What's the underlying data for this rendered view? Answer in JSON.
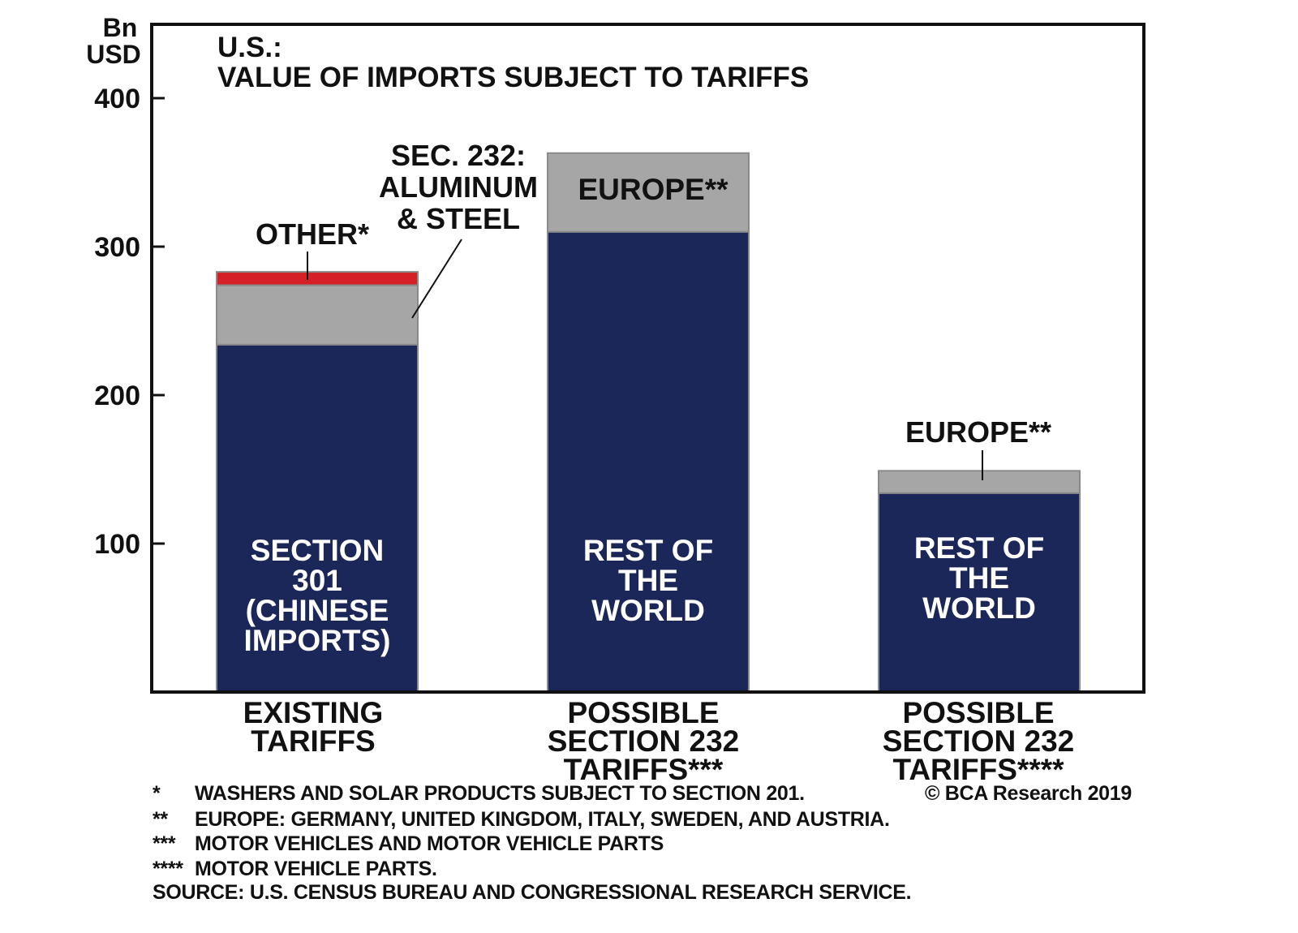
{
  "chart_data": {
    "type": "bar",
    "stacked": true,
    "title": "U.S.:",
    "subtitle": "VALUE OF IMPORTS SUBJECT TO TARIFFS",
    "ylabel": [
      "Bn",
      "USD"
    ],
    "ylim": [
      0,
      450
    ],
    "yticks": [
      "100",
      "200",
      "300",
      "400"
    ],
    "ytick_values": [
      100,
      200,
      300,
      400
    ],
    "grid": false,
    "categories": [
      [
        "EXISTING",
        "TARIFFS"
      ],
      [
        "POSSIBLE",
        "SECTION 232",
        "TARIFFS***"
      ],
      [
        "POSSIBLE",
        "SECTION 232",
        "TARIFFS****"
      ]
    ],
    "bars": [
      {
        "segments": [
          {
            "label": [
              "SECTION",
              "301",
              "(CHINESE",
              "IMPORTS)"
            ],
            "value": 234,
            "color": "#1c2759",
            "label_position": "inside"
          },
          {
            "label": [
              "SEC. 232:",
              "ALUMINUM",
              "& STEEL"
            ],
            "value": 40,
            "color": "#a6a6a6",
            "label_position": "callout"
          },
          {
            "label": [
              "OTHER*"
            ],
            "value": 9,
            "color": "#d42026",
            "label_position": "callout"
          }
        ]
      },
      {
        "segments": [
          {
            "label": [
              "REST OF",
              "THE",
              "WORLD"
            ],
            "value": 310,
            "color": "#1c2759",
            "label_position": "inside"
          },
          {
            "label": [
              "EUROPE**"
            ],
            "value": 53,
            "color": "#a6a6a6",
            "label_position": "inside"
          }
        ]
      },
      {
        "segments": [
          {
            "label": [
              "REST OF",
              "THE",
              "WORLD"
            ],
            "value": 134,
            "color": "#1c2759",
            "label_position": "inside"
          },
          {
            "label": [
              "EUROPE**"
            ],
            "value": 15,
            "color": "#a6a6a6",
            "label_position": "callout"
          }
        ]
      }
    ]
  },
  "footnotes": [
    {
      "marker": "*",
      "text": "WASHERS AND SOLAR PRODUCTS SUBJECT TO SECTION 201."
    },
    {
      "marker": "**",
      "text": "EUROPE: GERMANY, UNITED KINGDOM, ITALY, SWEDEN, AND AUSTRIA."
    },
    {
      "marker": "***",
      "text": "MOTOR VEHICLES AND MOTOR VEHICLE PARTS"
    },
    {
      "marker": "****",
      "text": "MOTOR VEHICLE PARTS."
    }
  ],
  "copyright": "© BCA Research 2019",
  "source": "SOURCE: U.S. CENSUS BUREAU AND CONGRESSIONAL RESEARCH SERVICE."
}
